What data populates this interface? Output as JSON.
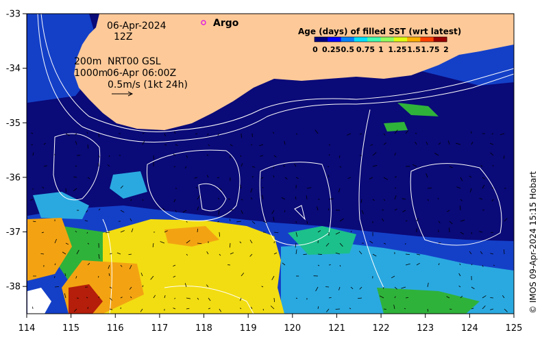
{
  "map": {
    "lon_range": [
      114,
      125
    ],
    "lat_range": [
      -38.5,
      -33
    ],
    "x_ticks": [
      "114",
      "115",
      "116",
      "117",
      "118",
      "119",
      "120",
      "121",
      "122",
      "123",
      "124",
      "125"
    ],
    "y_ticks": [
      "-33",
      "-34",
      "-35",
      "-36",
      "-37",
      "-38"
    ],
    "colors": {
      "land": "#fdc998",
      "ocean_deep": "#0a0a78",
      "ocean_mid": "#1440c8",
      "cyan": "#2aa9e0",
      "teal": "#1cc08a",
      "green": "#2fb23a",
      "yellow": "#f2dd12",
      "orange": "#f3a312",
      "red": "#b41e0a",
      "contour": "#ffffff"
    }
  },
  "annotations": {
    "date": "06-Apr-2024",
    "time": "12Z",
    "line1_label": "200m",
    "line1_value": "NRT00 GSL",
    "line2_label": "1000m",
    "line2_value": "06-Apr 06:00Z",
    "scale": "0.5m/s (1kt 24h)"
  },
  "legend": {
    "argo_label": "Argo",
    "argo_color": "#e020e0"
  },
  "colorbar": {
    "title": "Age (days) of filled SST (wrt latest)",
    "ticks": [
      "0",
      "0.25",
      "0.5",
      "0.75",
      "1",
      "1.25",
      "1.5",
      "1.75",
      "2"
    ],
    "colors": [
      "#00007f",
      "#0000ff",
      "#0080ff",
      "#00e0ff",
      "#40ffb0",
      "#90ff60",
      "#e0ff10",
      "#ffb000",
      "#ff4000",
      "#9a0000"
    ]
  },
  "credit": "© IMOS 09-Apr-2024 15:15 Hobart"
}
